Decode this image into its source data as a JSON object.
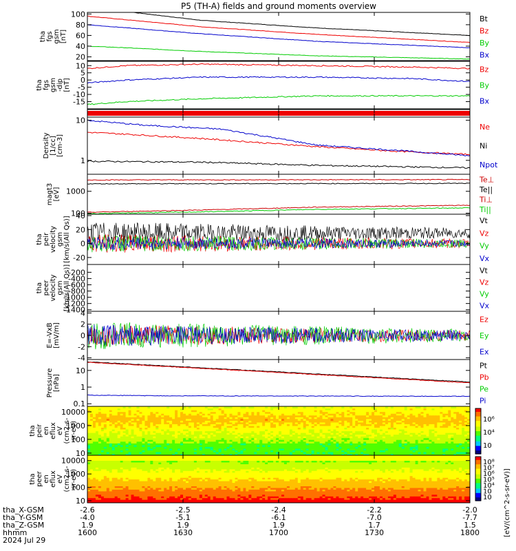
{
  "title": "P5 (TH-A) fields and ground moments overview",
  "colors": {
    "black": "#000000",
    "red": "#ee0000",
    "green": "#00cc00",
    "blue": "#0000cc",
    "Npot": "#0000cc",
    "Te_perp": "#cc0000",
    "Ti_perp": "#cc0000",
    "Ti_par": "#00cc00"
  },
  "orbit_labels": {
    "rows": [
      {
        "label": "tha_X-GSM",
        "values": [
          "-2.6",
          "-2.5",
          "-2.4",
          "-2.2",
          "-2.0"
        ]
      },
      {
        "label": "tha_Y-GSM",
        "values": [
          "-4.0",
          "-5.1",
          "-6.1",
          "-7.0",
          "-7.7"
        ]
      },
      {
        "label": "tha_Z-GSM",
        "values": [
          "1.9",
          "1.9",
          "1.9",
          "1.7",
          "1.5"
        ]
      },
      {
        "label": "hhmm",
        "values": [
          "1600",
          "1630",
          "1700",
          "1730",
          "1800"
        ]
      }
    ],
    "date": "2024 Jul 29"
  },
  "colorbar_label": "[eV/(cm^2-s-sr-eV)]",
  "chart_data": [
    {
      "type": "line",
      "panel": "fgs_gsm",
      "ylabel": [
        "tha",
        "fgs",
        "gsm",
        "[nT]"
      ],
      "ylim": [
        13,
        103
      ],
      "yticks": [
        20,
        40,
        60,
        80,
        100
      ],
      "series": [
        {
          "name": "Bt",
          "color": "black",
          "x": [
            0,
            0.12,
            0.3,
            0.6,
            1.0
          ],
          "y": [
            130,
            103,
            88,
            74,
            60
          ]
        },
        {
          "name": "Bz",
          "color": "red",
          "x": [
            0,
            0.3,
            0.6,
            1.0
          ],
          "y": [
            96,
            76,
            62,
            47
          ]
        },
        {
          "name": "By",
          "color": "green",
          "x": [
            0,
            0.1,
            0.3,
            0.6,
            1.0
          ],
          "y": [
            40,
            37,
            30,
            22,
            16
          ]
        },
        {
          "name": "Bx",
          "color": "blue",
          "x": [
            0,
            0.3,
            0.6,
            1.0
          ],
          "y": [
            80,
            63,
            49,
            37
          ]
        }
      ]
    },
    {
      "type": "line",
      "panel": "fgs_gsm_dip",
      "ylabel": [
        "tha",
        "fgs",
        "gsm",
        "-dip",
        "[nT]"
      ],
      "ylim": [
        -20,
        13
      ],
      "yticks": [
        -15,
        -10,
        -5,
        0,
        5,
        10
      ],
      "series": [
        {
          "name": "Bz",
          "color": "red",
          "x": [
            0,
            0.1,
            0.3,
            0.6,
            0.85,
            1.0
          ],
          "y": [
            8,
            10,
            11,
            10,
            9,
            8
          ]
        },
        {
          "name": "By",
          "color": "green",
          "x": [
            0,
            0.1,
            0.3,
            0.6,
            0.85,
            1.0
          ],
          "y": [
            -17,
            -15,
            -13,
            -11,
            -11,
            -11
          ]
        },
        {
          "name": "Bx",
          "color": "blue",
          "x": [
            0,
            0.1,
            0.3,
            0.6,
            0.85,
            1.0
          ],
          "y": [
            -2,
            0,
            2,
            2,
            1,
            -1
          ]
        }
      ]
    },
    {
      "type": "bar",
      "panel": "flag_strip",
      "color": "red"
    },
    {
      "type": "line",
      "panel": "density",
      "ylabel": [
        "Density",
        "[1/cc]",
        "[cm-3]"
      ],
      "log": true,
      "ylim": [
        0.45,
        12
      ],
      "yticks": [
        1,
        10
      ],
      "series": [
        {
          "name": "Ne",
          "color": "red",
          "x": [
            0,
            0.1,
            0.3,
            0.6,
            0.8,
            1.0
          ],
          "y": [
            5,
            4.5,
            3.5,
            2.2,
            1.7,
            1.4
          ]
        },
        {
          "name": "Ni",
          "color": "black",
          "x": [
            0,
            0.3,
            0.6,
            1.0
          ],
          "y": [
            0.95,
            0.9,
            0.75,
            0.65
          ]
        },
        {
          "name": "Npot",
          "color": "Npot",
          "x": [
            0,
            0.15,
            0.35,
            0.5,
            0.6,
            0.8,
            1.0
          ],
          "y": [
            10,
            7.5,
            6,
            3.5,
            2.4,
            1.8,
            1.3
          ]
        }
      ]
    },
    {
      "type": "line",
      "panel": "temperature",
      "ylabel": [
        "magt3",
        "[eV]"
      ],
      "log": true,
      "ylim": [
        90,
        6000
      ],
      "yticks": [
        100,
        1000
      ],
      "series": [
        {
          "name": "Te⊥",
          "color": "Te_perp",
          "x": [
            0,
            1
          ],
          "y": [
            3300,
            3400
          ]
        },
        {
          "name": "Te||",
          "color": "black",
          "x": [
            0,
            1
          ],
          "y": [
            2200,
            2300
          ]
        },
        {
          "name": "Ti⊥",
          "color": "Ti_perp",
          "x": [
            0,
            0.3,
            0.6,
            1.0
          ],
          "y": [
            110,
            140,
            190,
            230
          ]
        },
        {
          "name": "Ti||",
          "color": "Ti_par",
          "x": [
            0,
            0.3,
            0.6,
            1.0
          ],
          "y": [
            95,
            115,
            150,
            175
          ]
        }
      ]
    },
    {
      "type": "line",
      "panel": "peir_velocity",
      "ylabel": [
        "tha",
        "peir",
        "velocity",
        "gsm",
        "[km/s(All Qs)]"
      ],
      "ylim": [
        -30,
        42
      ],
      "yticks": [
        -20,
        0,
        20,
        40
      ],
      "series": [
        {
          "name": "Vt",
          "color": "black",
          "mean": 15,
          "amp": 16
        },
        {
          "name": "Vz",
          "color": "red",
          "mean": 0,
          "amp": 14
        },
        {
          "name": "Vy",
          "color": "green",
          "mean": 0,
          "amp": 13
        },
        {
          "name": "Vx",
          "color": "blue",
          "mean": 0,
          "amp": 10
        }
      ]
    },
    {
      "type": "line",
      "panel": "peer_velocity",
      "ylabel": [
        "tha",
        "peer",
        "velocity",
        "gsm",
        "[km/s(All Qs)]"
      ],
      "ylim": [
        -1450,
        50
      ],
      "yticks": [
        -1400,
        -1200,
        -1000,
        -800,
        -600,
        -400,
        -200
      ],
      "series": [
        {
          "name": "Vt",
          "color": "black"
        },
        {
          "name": "Vz",
          "color": "red"
        },
        {
          "name": "Vy",
          "color": "green"
        },
        {
          "name": "Vx",
          "color": "blue"
        }
      ]
    },
    {
      "type": "line",
      "panel": "efield",
      "ylabel": [
        "E=-VxB",
        "[mV/m]"
      ],
      "ylim": [
        -4.3,
        4.3
      ],
      "yticks": [
        -4,
        -2,
        0,
        2,
        4
      ],
      "series": [
        {
          "name": "Ez",
          "color": "red",
          "amp": 2.0
        },
        {
          "name": "Ey",
          "color": "green",
          "amp": 2.5
        },
        {
          "name": "Ex",
          "color": "blue",
          "amp": 2.0
        }
      ]
    },
    {
      "type": "line",
      "panel": "pressure",
      "ylabel": [
        "Pressure",
        "[nPa]"
      ],
      "log": true,
      "ylim": [
        0.07,
        45
      ],
      "yticks": [
        0.1,
        1.0,
        10.0
      ],
      "series": [
        {
          "name": "Pt",
          "color": "black",
          "x": [
            0,
            1
          ],
          "y": [
            33,
            2.0
          ]
        },
        {
          "name": "Pb",
          "color": "red",
          "x": [
            0,
            1
          ],
          "y": [
            31,
            1.8
          ]
        },
        {
          "name": "Pe",
          "color": "green",
          "x": [
            0,
            1
          ],
          "y": [
            0.06,
            0.06
          ]
        },
        {
          "name": "Pi",
          "color": "blue",
          "x": [
            0,
            0.2,
            1
          ],
          "y": [
            0.33,
            0.3,
            0.28
          ]
        }
      ]
    },
    {
      "type": "heatmap",
      "panel": "peir_en_eflux",
      "ylabel": [
        "tha",
        "peir",
        "en",
        "eflux",
        "eV",
        "(cm2-s-",
        "sr-eV)"
      ],
      "log": true,
      "ylim": [
        7,
        25000
      ],
      "yticks": [
        10,
        100,
        1000,
        10000
      ],
      "colorbar_ticks": [
        "10⁶",
        "10⁴",
        "10⁲"
      ]
    },
    {
      "type": "heatmap",
      "panel": "peer_en_eflux",
      "ylabel": [
        "tha",
        "peer",
        "en",
        "eflux",
        "eV",
        "(cm2-s-",
        "sr-eV)"
      ],
      "log": true,
      "ylim": [
        7,
        25000
      ],
      "yticks": [
        10,
        100,
        1000,
        10000
      ],
      "colorbar_ticks": [
        "10⁸",
        "10⁷",
        "10⁶",
        "10⁵",
        "10⁴",
        "10⁳",
        "10⁲"
      ]
    }
  ]
}
